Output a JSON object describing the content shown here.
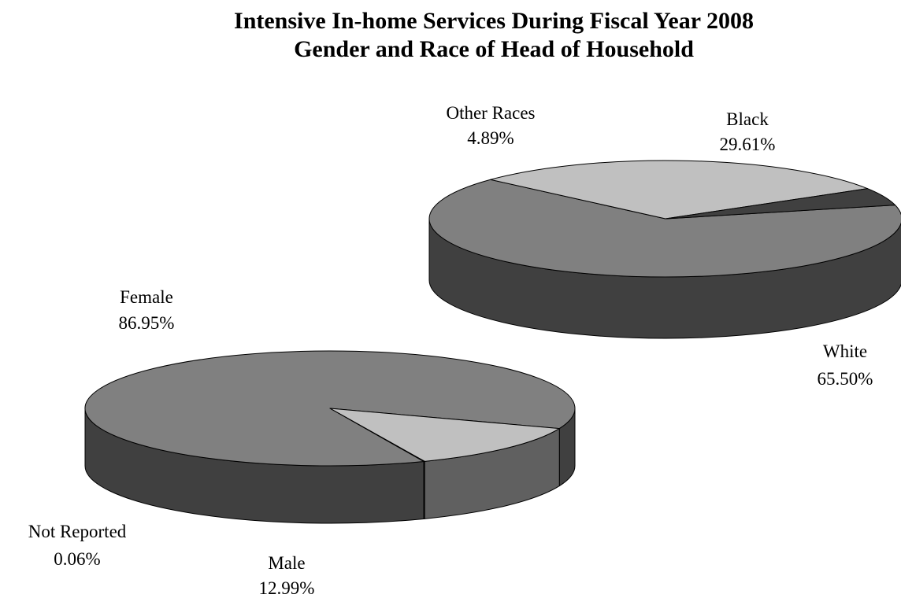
{
  "chart_data": [
    {
      "type": "pie",
      "title": "Intensive In-home Services During Fiscal Year 2008",
      "subtitle": "Gender and Race of Head of Household",
      "slices": [
        {
          "label": "White",
          "value_label": "65.50%",
          "value": 65.5,
          "color": "#808080",
          "side_color": "#404040"
        },
        {
          "label": "Black",
          "value_label": "29.61%",
          "value": 29.61,
          "color": "#c0c0c0",
          "side_color": "#909090"
        },
        {
          "label": "Other Races",
          "value_label": "4.89%",
          "value": 4.89,
          "color": "#404040",
          "side_color": "#303030"
        }
      ]
    },
    {
      "type": "pie",
      "slices": [
        {
          "label": "Female",
          "value_label": "86.95%",
          "value": 86.95,
          "color": "#808080",
          "side_color": "#404040"
        },
        {
          "label": "Male",
          "value_label": "12.99%",
          "value": 12.99,
          "color": "#c0c0c0",
          "side_color": "#606060"
        },
        {
          "label": "Not Reported",
          "value_label": "0.06%",
          "value": 0.06,
          "color": "#404040",
          "side_color": "#404040"
        }
      ]
    }
  ]
}
